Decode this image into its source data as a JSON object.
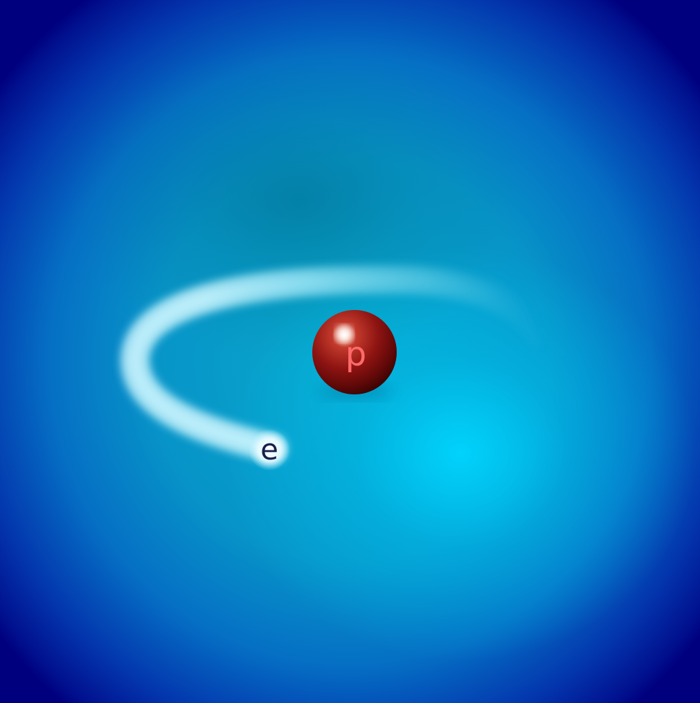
{
  "labels": {
    "proton": "p",
    "electron": "e"
  },
  "colors": {
    "background_edge": "#00007f",
    "background_center": "#00d6ff",
    "proton": "#8a1010",
    "proton_label": "#ff6a6a",
    "electron_trail": "#aef0ff",
    "electron_label": "#16204a"
  }
}
